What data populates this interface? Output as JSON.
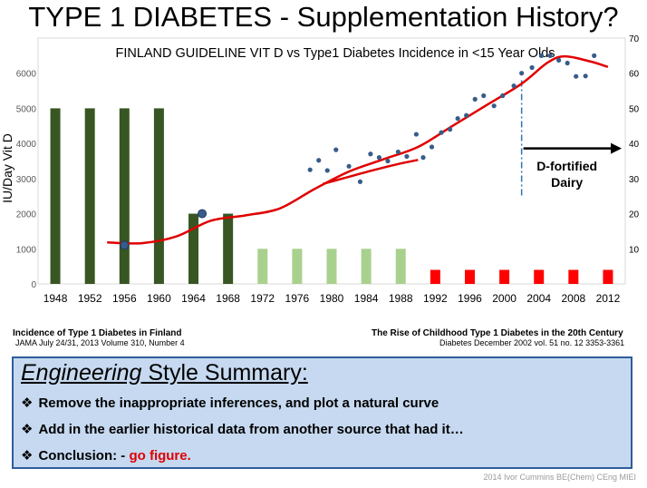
{
  "slide": {
    "title": "TYPE 1 DIABETES - Supplementation History?",
    "credit": "2014 Ivor Cummins BE(Chem) CEng MIEI"
  },
  "chart_data": {
    "type": "bar",
    "title": "FINLAND GUIDELINE VIT D vs Type1 Diabetes Incidence in <15 Year Olds",
    "ylabel_left": "IU/Day Vit D",
    "ylim_left": [
      0,
      7000
    ],
    "yticks_left": [
      "0",
      "1000",
      "2000",
      "3000",
      "4000",
      "5000",
      "6000"
    ],
    "ylim_right": [
      0,
      70
    ],
    "yticks_right": [
      "10",
      "20",
      "30",
      "40",
      "50",
      "60",
      "70"
    ],
    "x_tick_labels": [
      "1948",
      "1952",
      "1956",
      "1960",
      "1964",
      "1968",
      "1972",
      "1976",
      "1980",
      "1984",
      "1988",
      "1992",
      "1996",
      "2000",
      "2004",
      "2008",
      "2012"
    ],
    "xlim": [
      1946,
      2014
    ],
    "vitd_bars": [
      {
        "year": 1948,
        "value": 5000,
        "color": "#375623"
      },
      {
        "year": 1952,
        "value": 5000,
        "color": "#375623"
      },
      {
        "year": 1956,
        "value": 5000,
        "color": "#375623"
      },
      {
        "year": 1960,
        "value": 5000,
        "color": "#375623"
      },
      {
        "year": 1964,
        "value": 2000,
        "color": "#375623"
      },
      {
        "year": 1968,
        "value": 2000,
        "color": "#375623"
      },
      {
        "year": 1972,
        "value": 1000,
        "color": "#a9d18e"
      },
      {
        "year": 1976,
        "value": 1000,
        "color": "#a9d18e"
      },
      {
        "year": 1980,
        "value": 1000,
        "color": "#a9d18e"
      },
      {
        "year": 1984,
        "value": 1000,
        "color": "#a9d18e"
      },
      {
        "year": 1988,
        "value": 1000,
        "color": "#a9d18e"
      },
      {
        "year": 1992,
        "value": 400,
        "color": "#ff0000"
      },
      {
        "year": 1996,
        "value": 400,
        "color": "#ff0000"
      },
      {
        "year": 2000,
        "value": 400,
        "color": "#ff0000"
      },
      {
        "year": 2004,
        "value": 400,
        "color": "#ff0000"
      },
      {
        "year": 2008,
        "value": 400,
        "color": "#ff0000"
      },
      {
        "year": 2012,
        "value": 400,
        "color": "#ff0000"
      }
    ],
    "incidence_points": [
      {
        "year": 1956,
        "value": 11
      },
      {
        "year": 1965,
        "value": 20
      },
      {
        "year": 1977.5,
        "value": 32.5
      },
      {
        "year": 1978.5,
        "value": 35.2
      },
      {
        "year": 1979.5,
        "value": 32.3
      },
      {
        "year": 1980.5,
        "value": 38.2
      },
      {
        "year": 1982,
        "value": 33.5
      },
      {
        "year": 1983.3,
        "value": 29.1
      },
      {
        "year": 1984.5,
        "value": 37.0
      },
      {
        "year": 1985.5,
        "value": 36.0
      },
      {
        "year": 1986.5,
        "value": 35.0
      },
      {
        "year": 1987.7,
        "value": 37.6
      },
      {
        "year": 1988.7,
        "value": 36.3
      },
      {
        "year": 1989.8,
        "value": 42.6
      },
      {
        "year": 1990.6,
        "value": 36.0
      },
      {
        "year": 1991.6,
        "value": 39.0
      },
      {
        "year": 1992.7,
        "value": 43.1
      },
      {
        "year": 1993.7,
        "value": 44.0
      },
      {
        "year": 1994.6,
        "value": 47.1
      },
      {
        "year": 1995.6,
        "value": 48.0
      },
      {
        "year": 1996.6,
        "value": 52.6
      },
      {
        "year": 1997.6,
        "value": 53.6
      },
      {
        "year": 1998.8,
        "value": 50.7
      },
      {
        "year": 1999.8,
        "value": 53.6
      },
      {
        "year": 2001.1,
        "value": 56.4
      },
      {
        "year": 2002,
        "value": 60.0
      },
      {
        "year": 2003.2,
        "value": 61.6
      },
      {
        "year": 2004.3,
        "value": 65.0
      },
      {
        "year": 2005.3,
        "value": 65.0
      },
      {
        "year": 2006.3,
        "value": 63.7
      },
      {
        "year": 2007.3,
        "value": 62.9
      },
      {
        "year": 2008.3,
        "value": 59.1
      },
      {
        "year": 2009.4,
        "value": 59.2
      },
      {
        "year": 2010.4,
        "value": 65.0
      }
    ],
    "curve_long": [
      {
        "year": 1954,
        "value": 11.8
      },
      {
        "year": 1958,
        "value": 11.6
      },
      {
        "year": 1962,
        "value": 13.5
      },
      {
        "year": 1966,
        "value": 18.0
      },
      {
        "year": 1970,
        "value": 19.5
      },
      {
        "year": 1974,
        "value": 21.5
      },
      {
        "year": 1978,
        "value": 27.0
      },
      {
        "year": 1982,
        "value": 32.0
      },
      {
        "year": 1986,
        "value": 35.5
      },
      {
        "year": 1990,
        "value": 39.0
      },
      {
        "year": 1994,
        "value": 45.0
      },
      {
        "year": 1998,
        "value": 51.0
      },
      {
        "year": 2002,
        "value": 57.0
      },
      {
        "year": 2005,
        "value": 63.0
      },
      {
        "year": 2007,
        "value": 64.8
      },
      {
        "year": 2010,
        "value": 63.3
      },
      {
        "year": 2012,
        "value": 61.8
      }
    ],
    "curve_short": [
      {
        "year": 1979,
        "value": 28.5
      },
      {
        "year": 1982,
        "value": 30.5
      },
      {
        "year": 1985,
        "value": 32.5
      },
      {
        "year": 1988,
        "value": 34.3
      },
      {
        "year": 1990,
        "value": 35.3
      }
    ],
    "annotation": {
      "text": "D-fortified Dairy",
      "year": 2002
    },
    "colors": {
      "curve": "#e00000",
      "points": "#375c8a",
      "divider": "#2e75b6"
    }
  },
  "sources": {
    "left_title": "Incidence of Type 1 Diabetes in Finland",
    "left_detail": "JAMA July 24/31, 2013 Volume 310, Number 4",
    "right_title": "The Rise of Childhood Type 1 Diabetes in the 20th Century",
    "right_detail": "Diabetes December 2002   vol. 51  no. 12  3353-3361"
  },
  "summary": {
    "heading_italic": "Engineering",
    "heading_rest": " Style Summary:",
    "bullets": [
      "Remove the inappropriate inferences, and plot a natural curve",
      "Add in the earlier historical data from another source that had it…"
    ],
    "conclusion_prefix": "Conclusion: - ",
    "conclusion_highlight": "go figure.",
    "bullet_icon": "diamond-bullet-icon"
  }
}
